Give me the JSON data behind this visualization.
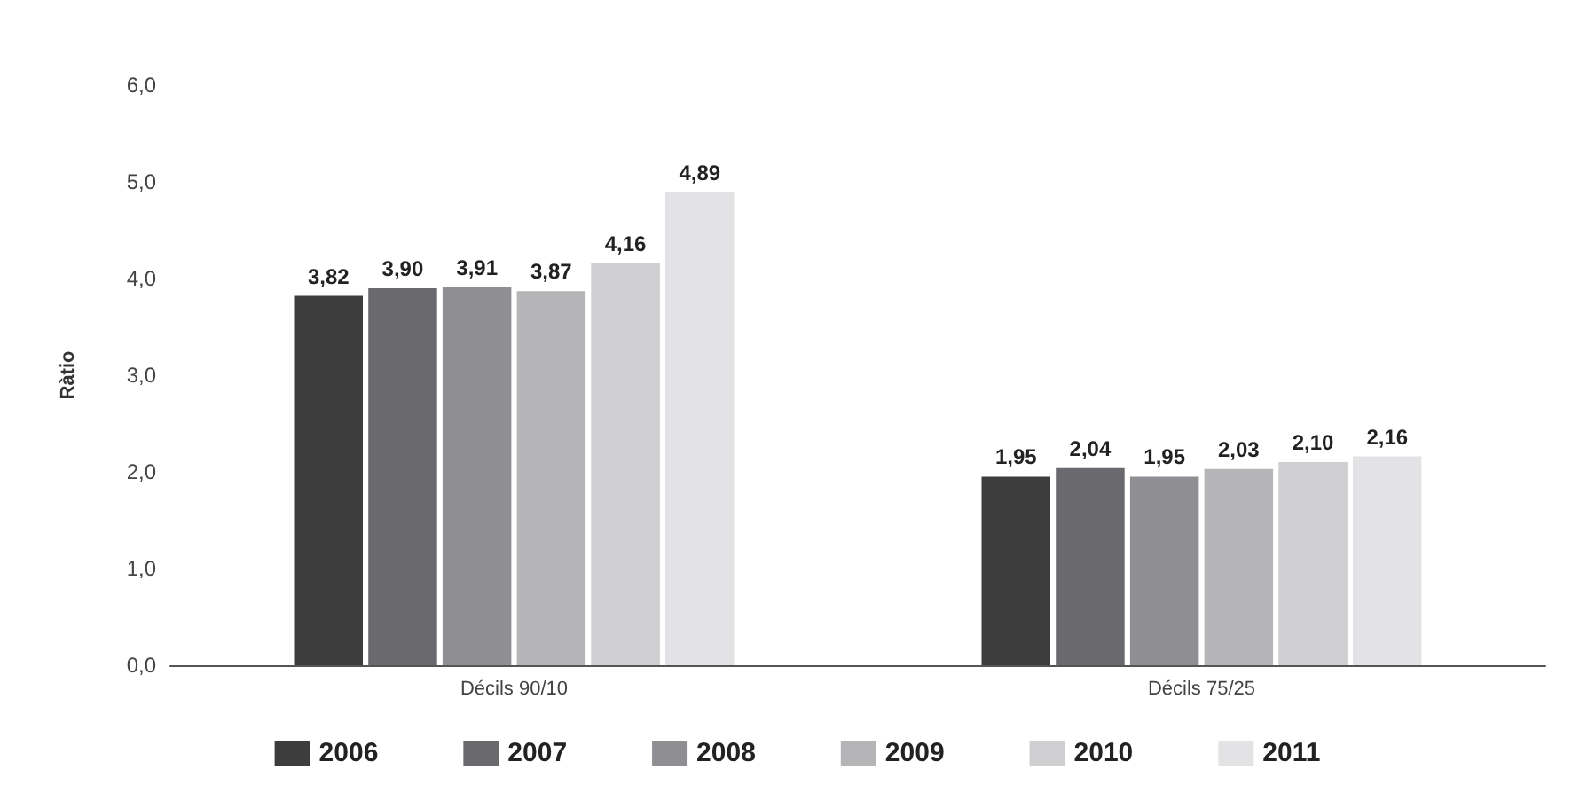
{
  "chart_data": {
    "type": "bar",
    "ylabel": "Ràtio",
    "categories": [
      "Décils 90/10",
      "Décils 75/25"
    ],
    "series": [
      {
        "name": "2006",
        "color": "#3d3d3d",
        "values": [
          3.82,
          1.95
        ],
        "value_labels": [
          "3,82",
          "1,95"
        ]
      },
      {
        "name": "2007",
        "color": "#6a6a6e",
        "values": [
          3.9,
          2.04
        ],
        "value_labels": [
          "3,90",
          "2,04"
        ]
      },
      {
        "name": "2008",
        "color": "#8f8f93",
        "values": [
          3.91,
          1.95
        ],
        "value_labels": [
          "3,91",
          "1,95"
        ]
      },
      {
        "name": "2009",
        "color": "#b5b5b8",
        "values": [
          3.87,
          2.03
        ],
        "value_labels": [
          "3,87",
          "2,03"
        ]
      },
      {
        "name": "2010",
        "color": "#cfcfd1",
        "values": [
          4.16,
          2.1
        ],
        "value_labels": [
          "4,16",
          "2,10"
        ]
      },
      {
        "name": "2011",
        "color": "#e3e3e5",
        "values": [
          4.89,
          2.16
        ],
        "value_labels": [
          "4,89",
          "2,16"
        ]
      }
    ],
    "ylim": [
      0,
      6
    ],
    "yticks": [
      {
        "value": 0,
        "label": "0,0"
      },
      {
        "value": 1,
        "label": "1,0"
      },
      {
        "value": 2,
        "label": "2,0"
      },
      {
        "value": 3,
        "label": "3,0"
      },
      {
        "value": 4,
        "label": "4,0"
      },
      {
        "value": 5,
        "label": "5,0"
      },
      {
        "value": 6,
        "label": "6,0"
      }
    ],
    "grid": false,
    "legend": "bottom"
  }
}
